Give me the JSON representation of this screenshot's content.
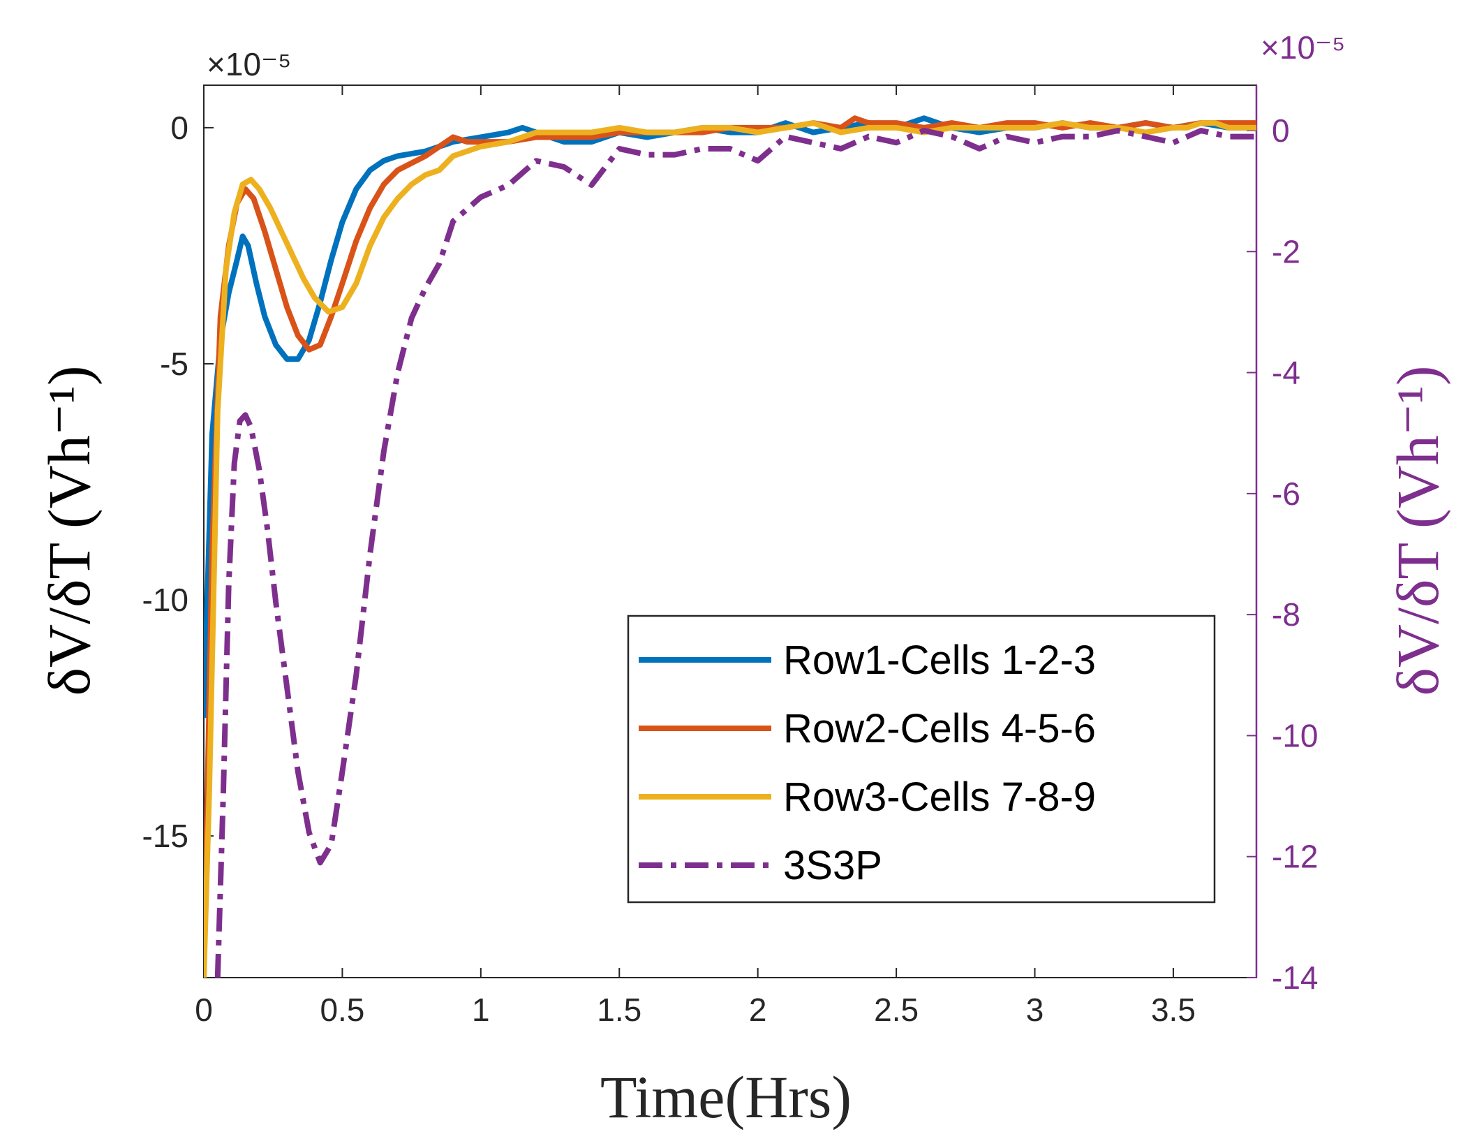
{
  "chart_data": {
    "type": "line",
    "xlabel": "Time(Hrs)",
    "ylabel_left": "δV/δT (Vh⁻¹)",
    "ylabel_right": "δV/δT (Vh⁻¹)",
    "exponent_left": "×10⁻⁵",
    "exponent_right": "×10⁻⁵",
    "xlim": [
      0,
      3.8
    ],
    "ylim_left": [
      -18,
      0.9
    ],
    "ylim_right": [
      -14,
      0.75
    ],
    "xticks": [
      0,
      0.5,
      1,
      1.5,
      2,
      2.5,
      3,
      3.5
    ],
    "xtick_labels": [
      "0",
      "0.5",
      "1",
      "1.5",
      "2",
      "2.5",
      "3",
      "3.5"
    ],
    "yticks_left": [
      0,
      -5,
      -10,
      -15
    ],
    "ytick_labels_left": [
      "0",
      "-5",
      "-10",
      "-15"
    ],
    "yticks_right": [
      0,
      -2,
      -4,
      -6,
      -8,
      -10,
      -12,
      -14
    ],
    "ytick_labels_right": [
      "0",
      "-2",
      "-4",
      "-6",
      "-8",
      "-10",
      "-12",
      "-14"
    ],
    "grid": false,
    "legend_position": "bottom-right",
    "colors": {
      "row1": "#0072BD",
      "row2": "#D95319",
      "row3": "#EDB120",
      "pack": "#7E2F8E",
      "right_axis": "#7E2F8E"
    },
    "series": [
      {
        "name": "Row1-Cells 1-2-3",
        "axis": "left",
        "style": "solid",
        "color": "#0072BD",
        "x": [
          0,
          0.03,
          0.06,
          0.09,
          0.12,
          0.14,
          0.16,
          0.19,
          0.22,
          0.26,
          0.3,
          0.34,
          0.38,
          0.42,
          0.46,
          0.5,
          0.55,
          0.6,
          0.65,
          0.7,
          0.8,
          0.9,
          1.0,
          1.1,
          1.15,
          1.2,
          1.3,
          1.4,
          1.5,
          1.6,
          1.7,
          1.8,
          1.9,
          2.0,
          2.1,
          2.2,
          2.3,
          2.4,
          2.5,
          2.6,
          2.7,
          2.8,
          2.9,
          3.0,
          3.1,
          3.2,
          3.3,
          3.4,
          3.5,
          3.6,
          3.7,
          3.8
        ],
        "y": [
          -12.5,
          -6.5,
          -4.5,
          -3.5,
          -2.8,
          -2.3,
          -2.5,
          -3.3,
          -4.0,
          -4.6,
          -4.9,
          -4.9,
          -4.5,
          -3.7,
          -2.8,
          -2.0,
          -1.3,
          -0.9,
          -0.7,
          -0.6,
          -0.5,
          -0.3,
          -0.2,
          -0.1,
          0.0,
          -0.1,
          -0.3,
          -0.3,
          -0.1,
          -0.2,
          -0.1,
          0.0,
          -0.1,
          -0.1,
          0.1,
          -0.1,
          0.0,
          0.1,
          0.0,
          0.2,
          0.0,
          -0.1,
          0.0,
          0.0,
          0.1,
          0.0,
          0.0,
          0.1,
          0.0,
          0.1,
          0.0,
          0.0
        ]
      },
      {
        "name": "Row2-Cells 4-5-6",
        "axis": "left",
        "style": "solid",
        "color": "#D95319",
        "x": [
          0,
          0.03,
          0.06,
          0.09,
          0.12,
          0.15,
          0.18,
          0.22,
          0.26,
          0.3,
          0.34,
          0.38,
          0.42,
          0.46,
          0.5,
          0.55,
          0.6,
          0.65,
          0.7,
          0.8,
          0.9,
          0.95,
          1.0,
          1.1,
          1.2,
          1.3,
          1.4,
          1.5,
          1.6,
          1.7,
          1.8,
          1.9,
          2.0,
          2.1,
          2.2,
          2.3,
          2.35,
          2.4,
          2.5,
          2.6,
          2.7,
          2.8,
          2.9,
          3.0,
          3.1,
          3.2,
          3.3,
          3.4,
          3.5,
          3.6,
          3.7,
          3.8
        ],
        "y": [
          -18,
          -9.0,
          -4.0,
          -2.5,
          -1.6,
          -1.3,
          -1.5,
          -2.2,
          -3.0,
          -3.8,
          -4.4,
          -4.7,
          -4.6,
          -4.0,
          -3.3,
          -2.4,
          -1.7,
          -1.2,
          -0.9,
          -0.6,
          -0.2,
          -0.3,
          -0.3,
          -0.3,
          -0.2,
          -0.2,
          -0.2,
          -0.1,
          -0.1,
          -0.1,
          -0.1,
          0.0,
          0.0,
          0.0,
          0.1,
          0.0,
          0.2,
          0.1,
          0.1,
          0.0,
          0.1,
          0.0,
          0.1,
          0.1,
          0.0,
          0.1,
          0.0,
          0.1,
          0.0,
          0.1,
          0.1,
          0.1
        ]
      },
      {
        "name": "Row3-Cells 7-8-9",
        "axis": "left",
        "style": "solid",
        "color": "#EDB120",
        "x": [
          0,
          0.02,
          0.05,
          0.08,
          0.11,
          0.14,
          0.17,
          0.2,
          0.24,
          0.28,
          0.32,
          0.36,
          0.4,
          0.45,
          0.5,
          0.55,
          0.6,
          0.65,
          0.7,
          0.75,
          0.8,
          0.85,
          0.9,
          1.0,
          1.1,
          1.2,
          1.3,
          1.4,
          1.5,
          1.6,
          1.7,
          1.8,
          1.9,
          2.0,
          2.1,
          2.2,
          2.3,
          2.4,
          2.5,
          2.6,
          2.7,
          2.8,
          2.9,
          3.0,
          3.1,
          3.2,
          3.3,
          3.4,
          3.5,
          3.55,
          3.6,
          3.65,
          3.7,
          3.8
        ],
        "y": [
          -18,
          -14.0,
          -6.0,
          -3.0,
          -1.8,
          -1.2,
          -1.1,
          -1.3,
          -1.7,
          -2.2,
          -2.7,
          -3.2,
          -3.6,
          -3.9,
          -3.8,
          -3.3,
          -2.5,
          -1.9,
          -1.5,
          -1.2,
          -1.0,
          -0.9,
          -0.6,
          -0.4,
          -0.3,
          -0.1,
          -0.1,
          -0.1,
          0.0,
          -0.1,
          -0.1,
          0.0,
          0.0,
          -0.1,
          0.0,
          0.1,
          -0.1,
          0.0,
          0.0,
          -0.1,
          0.0,
          0.0,
          0.0,
          0.0,
          0.1,
          0.0,
          0.0,
          -0.1,
          0.0,
          0.0,
          0.1,
          0.1,
          0.0,
          0.0
        ]
      },
      {
        "name": "3S3P",
        "axis": "right",
        "style": "dash-dot",
        "color": "#7E2F8E",
        "x": [
          0.05,
          0.07,
          0.09,
          0.11,
          0.13,
          0.15,
          0.17,
          0.2,
          0.23,
          0.26,
          0.3,
          0.34,
          0.38,
          0.42,
          0.46,
          0.5,
          0.55,
          0.6,
          0.65,
          0.7,
          0.75,
          0.8,
          0.85,
          0.9,
          0.95,
          1.0,
          1.1,
          1.2,
          1.3,
          1.4,
          1.5,
          1.6,
          1.7,
          1.8,
          1.9,
          2.0,
          2.1,
          2.2,
          2.3,
          2.4,
          2.5,
          2.6,
          2.7,
          2.8,
          2.9,
          3.0,
          3.1,
          3.2,
          3.3,
          3.4,
          3.5,
          3.6,
          3.7,
          3.8
        ],
        "y": [
          -14.0,
          -11.0,
          -7.5,
          -5.5,
          -4.8,
          -4.7,
          -4.9,
          -5.6,
          -6.6,
          -7.8,
          -9.2,
          -10.6,
          -11.6,
          -12.1,
          -11.8,
          -10.6,
          -9.0,
          -7.0,
          -5.3,
          -4.0,
          -3.1,
          -2.6,
          -2.2,
          -1.5,
          -1.3,
          -1.1,
          -0.9,
          -0.5,
          -0.6,
          -0.9,
          -0.3,
          -0.4,
          -0.4,
          -0.3,
          -0.3,
          -0.5,
          -0.1,
          -0.2,
          -0.3,
          -0.1,
          -0.2,
          0.0,
          -0.1,
          -0.3,
          -0.1,
          -0.2,
          -0.1,
          -0.1,
          0.0,
          -0.1,
          -0.2,
          0.0,
          -0.1,
          -0.1
        ]
      }
    ]
  }
}
